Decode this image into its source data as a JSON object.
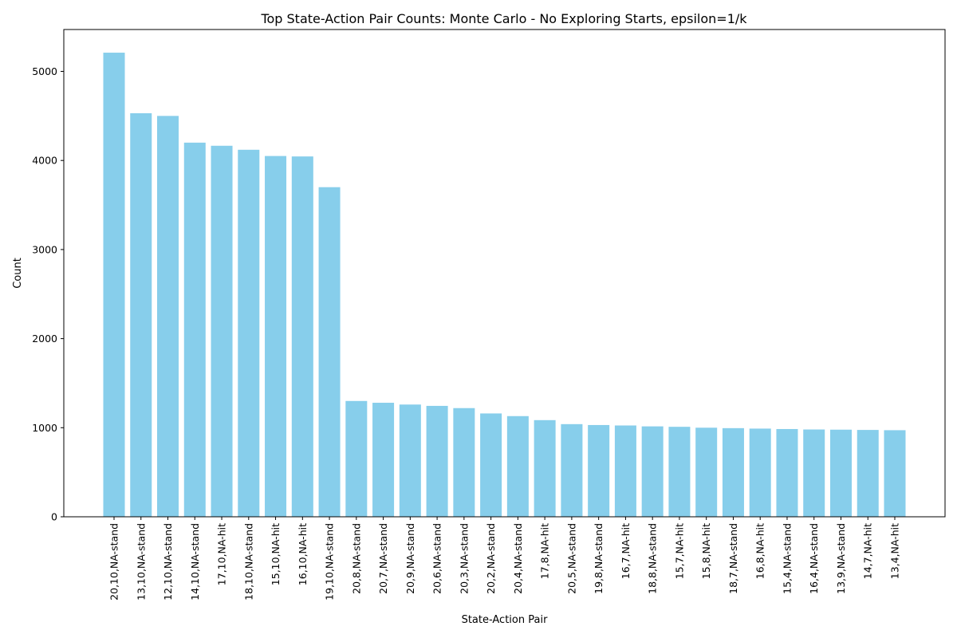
{
  "chart_data": {
    "type": "bar",
    "title": "Top State-Action Pair Counts: Monte Carlo - No Exploring Starts, epsilon=1/k",
    "xlabel": "State-Action Pair",
    "ylabel": "Count",
    "ylim": [
      0,
      5470
    ],
    "yticks": [
      0,
      1000,
      2000,
      3000,
      4000,
      5000
    ],
    "grid": false,
    "bar_color": "#87CEEB",
    "categories": [
      "20,10,NA-stand",
      "13,10,NA-stand",
      "12,10,NA-stand",
      "14,10,NA-stand",
      "17,10,NA-hit",
      "18,10,NA-stand",
      "15,10,NA-hit",
      "16,10,NA-hit",
      "19,10,NA-stand",
      "20,8,NA-stand",
      "20,7,NA-stand",
      "20,9,NA-stand",
      "20,6,NA-stand",
      "20,3,NA-stand",
      "20,2,NA-stand",
      "20,4,NA-stand",
      "17,8,NA-hit",
      "20,5,NA-stand",
      "19,8,NA-stand",
      "16,7,NA-hit",
      "18,8,NA-stand",
      "15,7,NA-hit",
      "15,8,NA-hit",
      "18,7,NA-stand",
      "16,8,NA-hit",
      "15,4,NA-stand",
      "16,4,NA-stand",
      "13,9,NA-stand",
      "14,7,NA-hit",
      "13,4,NA-hit"
    ],
    "values": [
      5210,
      4530,
      4500,
      4200,
      4165,
      4120,
      4050,
      4045,
      3700,
      1300,
      1280,
      1260,
      1245,
      1220,
      1160,
      1130,
      1085,
      1040,
      1030,
      1025,
      1015,
      1010,
      1000,
      995,
      990,
      985,
      980,
      978,
      975,
      972
    ]
  }
}
